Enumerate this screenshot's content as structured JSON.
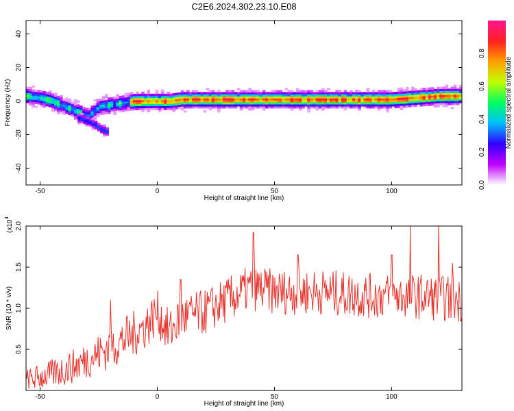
{
  "title": "C2E6.2024.302.23.10.E08",
  "chart_data": [
    {
      "type": "heatmap",
      "xlabel": "Height of straight line (km)",
      "ylabel": "Frequency (Hz)",
      "xlim": [
        -56,
        130
      ],
      "ylim": [
        -50,
        48
      ],
      "x_ticks": [
        -50,
        0,
        50,
        100
      ],
      "x_tick_labels": [
        "-50",
        "0",
        "50",
        "100"
      ],
      "y_ticks": [
        -40,
        -20,
        0,
        20,
        40
      ],
      "y_tick_labels": [
        "-40",
        "-20",
        "0",
        "20",
        "40"
      ],
      "colorbar": {
        "label": "Normalized spectral amplitude",
        "range": [
          0,
          1
        ],
        "ticks": [
          0,
          0.2,
          0.4,
          0.6,
          0.8
        ],
        "tick_labels": [
          "0.0",
          "0.2",
          "0.4",
          "0.6",
          "0.8"
        ],
        "colors": [
          "#ffffff",
          "#c000ff",
          "#3000ff",
          "#00c0ff",
          "#00ff60",
          "#c0ff00",
          "#ffa000",
          "#ff2020",
          "#ff1493"
        ]
      },
      "ridge": {
        "x": [
          -56,
          -50,
          -45,
          -40,
          -35,
          -30,
          -25,
          -20,
          -15,
          -10,
          -5,
          0,
          5,
          10,
          20,
          40,
          60,
          80,
          100,
          110,
          120,
          130
        ],
        "frequency": [
          3,
          2,
          0,
          -3,
          -6,
          -9,
          -3,
          -2,
          -1,
          0,
          0,
          0,
          0,
          1,
          1,
          1,
          1,
          1,
          1,
          2,
          3,
          3
        ]
      },
      "branch": {
        "x": [
          -34,
          -30,
          -27,
          -24,
          -22
        ],
        "frequency": [
          -10,
          -12,
          -14,
          -17,
          -18
        ]
      }
    },
    {
      "type": "line",
      "xlabel": "Height of straight line (km)",
      "ylabel": "SNR (10 * v/v)",
      "multiplier_label": "(x10",
      "multiplier_exp": "4",
      "xlim": [
        -56,
        130
      ],
      "ylim": [
        0,
        2.0
      ],
      "x_ticks": [
        -50,
        0,
        50,
        100
      ],
      "x_tick_labels": [
        "-50",
        "0",
        "50",
        "100"
      ],
      "y_ticks": [
        0.5,
        1.0,
        1.5,
        2.0
      ],
      "y_tick_labels": [
        "0.5",
        "1.0",
        "1.5",
        "2.0"
      ],
      "line_color": "#e8302a",
      "trend": {
        "x": [
          -56,
          -45,
          -35,
          -25,
          -15,
          -5,
          0,
          5,
          10,
          20,
          30,
          40,
          50,
          70,
          90,
          110,
          130
        ],
        "y": [
          0.12,
          0.2,
          0.3,
          0.45,
          0.6,
          0.78,
          0.95,
          0.7,
          0.88,
          0.95,
          1.1,
          1.25,
          1.2,
          1.2,
          1.15,
          1.15,
          1.1
        ]
      },
      "peaks": {
        "x": [
          -20,
          10,
          41,
          60,
          100,
          108,
          120,
          126
        ],
        "y": [
          1.1,
          1.35,
          1.92,
          1.65,
          1.65,
          2.0,
          2.0,
          1.55
        ]
      },
      "noise_amplitude": 0.28,
      "samples": 600
    }
  ]
}
